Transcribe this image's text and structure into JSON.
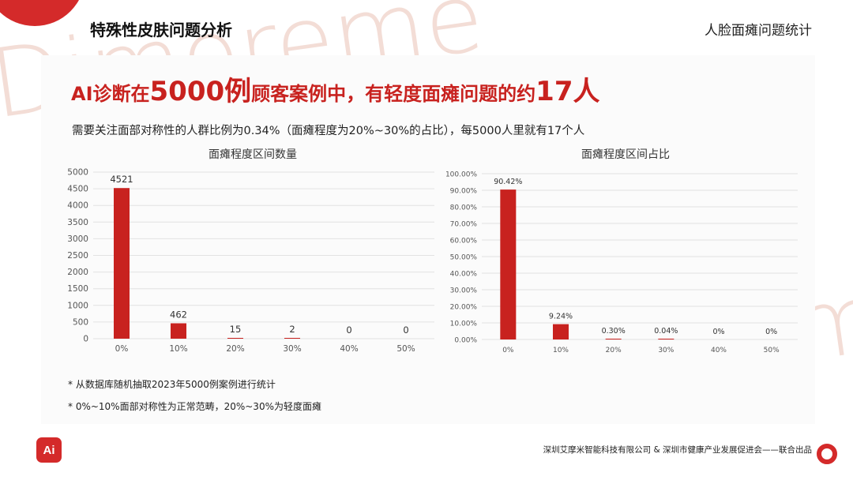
{
  "header": {
    "section_title": "特殊性皮肤问题分析",
    "topic": "人脸面瘫问题统计"
  },
  "watermark": {
    "text": "Dimoreme"
  },
  "headline": {
    "part1": "AI诊断在",
    "num1": "5000例",
    "part2": "顾客案例中，有轻度面瘫问题的约",
    "num2": "17人"
  },
  "subheadline": "需要关注面部对称性的人群比例为0.34%（面瘫程度为20%~30%的占比），每5000人里就有17个人",
  "notes": [
    "* 从数据库随机抽取2023年5000例案例进行统计",
    "* 0%~10%面部对称性为正常范畴，20%~30%为轻度面瘫"
  ],
  "footer": {
    "credit": "深圳艾摩米智能科技有限公司 & 深圳市健康产业发展促进会——联合出品",
    "logo_text": "Ai"
  },
  "colors": {
    "accent": "#c8221f",
    "bar": "#c8221f",
    "grid": "#e2e2e2"
  },
  "chart_data": [
    {
      "type": "bar",
      "title": "面瘫程度区间数量",
      "categories": [
        "0%",
        "10%",
        "20%",
        "30%",
        "40%",
        "50%"
      ],
      "values": [
        4521,
        462,
        15,
        2,
        0,
        0
      ],
      "data_labels": [
        "4521",
        "462",
        "15",
        "2",
        "0",
        "0"
      ],
      "ylim": [
        0,
        5000
      ],
      "yticks": [
        0,
        500,
        1000,
        1500,
        2000,
        2500,
        3000,
        3500,
        4000,
        4500,
        5000
      ],
      "ytick_labels": [
        "0",
        "500",
        "1000",
        "1500",
        "2000",
        "2500",
        "3000",
        "3500",
        "4000",
        "4500",
        "5000"
      ],
      "grid": true
    },
    {
      "type": "bar",
      "title": "面瘫程度区间占比",
      "categories": [
        "0%",
        "10%",
        "20%",
        "30%",
        "40%",
        "50%"
      ],
      "values": [
        90.42,
        9.24,
        0.3,
        0.04,
        0,
        0
      ],
      "data_labels": [
        "90.42%",
        "9.24%",
        "0.30%",
        "0.04%",
        "0%",
        "0%"
      ],
      "ylim": [
        0,
        100
      ],
      "yticks": [
        0,
        10,
        20,
        30,
        40,
        50,
        60,
        70,
        80,
        90,
        100
      ],
      "ytick_labels": [
        "0.00%",
        "10.00%",
        "20.00%",
        "30.00%",
        "40.00%",
        "50.00%",
        "60.00%",
        "70.00%",
        "80.00%",
        "90.00%",
        "100.00%"
      ],
      "grid": true
    }
  ]
}
